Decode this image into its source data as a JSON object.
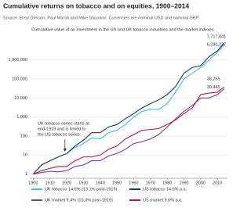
{
  "chart_data": {
    "type": "line",
    "title": "Cumulative returns on tobacco and on equities, 1900–2014",
    "source": "Source: Elroy Dimson, Paul Marsh and Mike Staunton. Currencies are nominal USD and nominal GBP",
    "subtitle": "Cumulative value of an investment in the US and UK tobacco industries and the market indexes",
    "annotation": [
      "UK tobacco series starts at",
      "end-1919 and is linked to",
      "the US tobacco series"
    ],
    "annotation_x": 1919,
    "x": [
      1900,
      1905,
      1910,
      1915,
      1920,
      1925,
      1930,
      1935,
      1940,
      1945,
      1950,
      1955,
      1960,
      1965,
      1970,
      1975,
      1980,
      1985,
      1990,
      1995,
      2000,
      2005,
      2010,
      2014
    ],
    "series": [
      {
        "name": "UK tobacco 14.6% (13.1% post-1919)",
        "color": "#3fc1e0",
        "values": [
          1,
          3,
          5,
          8,
          12,
          25,
          40,
          80,
          70,
          150,
          200,
          400,
          1000,
          2000,
          2500,
          2500,
          5000,
          20000,
          100000,
          200000,
          400000,
          1000000,
          2500000,
          6280237
        ],
        "value_labels": [
          null,
          null,
          null,
          null,
          null,
          null,
          null,
          null,
          null,
          null,
          null,
          null,
          null,
          null,
          null,
          null,
          null,
          null,
          null,
          null,
          null,
          null,
          null,
          "6,280,237"
        ]
      },
      {
        "name": "US tobacco 14.6% p.a.",
        "color": "#1b3a5c",
        "values": [
          1,
          3,
          5,
          8,
          12,
          30,
          60,
          150,
          150,
          300,
          400,
          800,
          1500,
          3000,
          5000,
          8000,
          15000,
          40000,
          200000,
          400000,
          500000,
          1500000,
          3000000,
          7717841
        ],
        "value_labels": [
          null,
          null,
          null,
          null,
          null,
          null,
          null,
          null,
          null,
          null,
          null,
          null,
          null,
          null,
          null,
          null,
          null,
          null,
          null,
          null,
          null,
          null,
          null,
          "7,717,841"
        ]
      },
      {
        "name": "UK market 9.4% (10.3% post-1919)",
        "color": "#7b3f8c",
        "values": [
          1,
          1.2,
          1.4,
          1.3,
          1.5,
          2.5,
          3,
          5,
          5,
          9,
          12,
          20,
          40,
          50,
          70,
          120,
          300,
          800,
          2000,
          4000,
          10000,
          10000,
          15000,
          30445
        ],
        "value_labels": [
          null,
          null,
          null,
          null,
          null,
          null,
          null,
          null,
          null,
          null,
          null,
          null,
          null,
          null,
          null,
          null,
          null,
          null,
          null,
          null,
          null,
          null,
          null,
          "30,445"
        ]
      },
      {
        "name": "US market 9.6% p.a.",
        "color": "#c0143c",
        "values": [
          1,
          1.5,
          2,
          2.5,
          2.5,
          5,
          8,
          8,
          10,
          20,
          30,
          70,
          120,
          200,
          220,
          250,
          400,
          700,
          1500,
          3000,
          15000,
          18000,
          20000,
          38255
        ],
        "value_labels": [
          null,
          null,
          null,
          null,
          null,
          null,
          null,
          null,
          null,
          null,
          null,
          null,
          null,
          null,
          null,
          null,
          null,
          null,
          null,
          null,
          null,
          null,
          null,
          "38,255"
        ]
      }
    ],
    "log_y": true,
    "xlim": [
      1898,
      2016
    ],
    "ylim": [
      0.6,
      20000000
    ],
    "xticks": [
      1900,
      1910,
      1920,
      1930,
      1940,
      1950,
      1960,
      1970,
      1980,
      1990,
      2000,
      2010
    ],
    "yticks": [
      1,
      10,
      100,
      {
        "value": 1000,
        "label": "1,000"
      },
      {
        "value": 10000,
        "label": "10,000"
      },
      {
        "value": 100000,
        "label": "100,000"
      },
      {
        "value": 1000000,
        "label": "1,000,000"
      }
    ],
    "grid": true
  }
}
